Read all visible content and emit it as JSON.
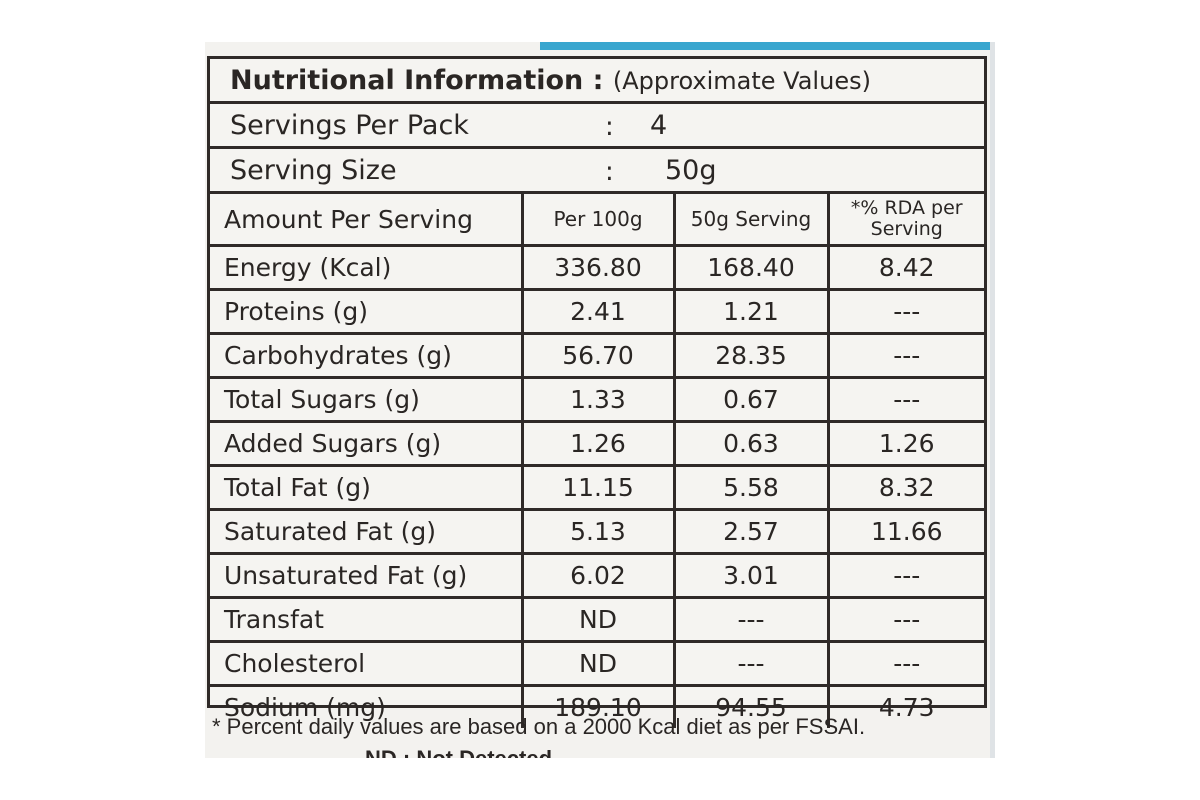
{
  "label": {
    "title": "Nutritional Information :",
    "title_note": "(Approximate Values)",
    "servings_per_pack": {
      "label": "Servings Per Pack",
      "colon": ":",
      "value": "4"
    },
    "serving_size": {
      "label": "Serving Size",
      "colon": ":",
      "value": "50g"
    },
    "columns": [
      "Amount Per Serving",
      "Per 100g",
      "50g Serving",
      "*% RDA per Serving"
    ],
    "rows": [
      {
        "name": "Energy (Kcal)",
        "per100": "336.80",
        "serving": "168.40",
        "rda": "8.42"
      },
      {
        "name": "Proteins (g)",
        "per100": "2.41",
        "serving": "1.21",
        "rda": "---"
      },
      {
        "name": "Carbohydrates (g)",
        "per100": "56.70",
        "serving": "28.35",
        "rda": "---"
      },
      {
        "name": "Total Sugars (g)",
        "per100": "1.33",
        "serving": "0.67",
        "rda": "---"
      },
      {
        "name": "Added Sugars (g)",
        "per100": "1.26",
        "serving": "0.63",
        "rda": "1.26"
      },
      {
        "name": "Total Fat (g)",
        "per100": "11.15",
        "serving": "5.58",
        "rda": "8.32"
      },
      {
        "name": "Saturated Fat (g)",
        "per100": "5.13",
        "serving": "2.57",
        "rda": "11.66"
      },
      {
        "name": "Unsaturated Fat (g)",
        "per100": "6.02",
        "serving": "3.01",
        "rda": "---"
      },
      {
        "name": "Transfat",
        "per100": "ND",
        "serving": "---",
        "rda": "---"
      },
      {
        "name": "Cholesterol",
        "per100": "ND",
        "serving": "---",
        "rda": "---"
      },
      {
        "name": "Sodium (mg)",
        "per100": "189.10",
        "serving": "94.55",
        "rda": "4.73"
      }
    ],
    "footnote": "* Percent daily values are based on a 2000 Kcal diet as per FSSAI.",
    "nd_note": "ND : Not Detected"
  },
  "colors": {
    "ink": "#2a2624",
    "background": "#f5f4f1",
    "accent_strip": "#39a6cf"
  }
}
